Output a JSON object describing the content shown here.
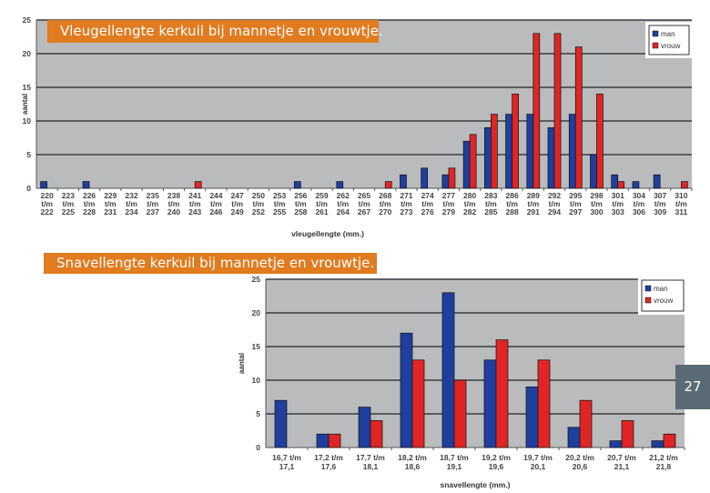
{
  "chart_data": [
    {
      "type": "bar",
      "title": "Vleugellengte kerkuil bij mannetje en vrouwtje.",
      "xlabel": "vleugellengte (mm.)",
      "ylabel": "aantal",
      "ylim": [
        0,
        25
      ],
      "yticks": [
        0,
        5,
        10,
        15,
        20,
        25
      ],
      "grid": true,
      "legend": "top-right",
      "categories": [
        [
          "220",
          "t/m",
          "222"
        ],
        [
          "223",
          "t/m",
          "225"
        ],
        [
          "226",
          "t/m",
          "228"
        ],
        [
          "229",
          "t/m",
          "231"
        ],
        [
          "232",
          "t/m",
          "234"
        ],
        [
          "235",
          "t/m",
          "237"
        ],
        [
          "238",
          "t/m",
          "240"
        ],
        [
          "241",
          "t/m",
          "243"
        ],
        [
          "244",
          "t/m",
          "246"
        ],
        [
          "247",
          "t/m",
          "249"
        ],
        [
          "250",
          "t/m",
          "252"
        ],
        [
          "253",
          "t/m",
          "255"
        ],
        [
          "256",
          "t/m",
          "258"
        ],
        [
          "259",
          "t/m",
          "261"
        ],
        [
          "262",
          "t/m",
          "264"
        ],
        [
          "265",
          "t/m",
          "267"
        ],
        [
          "268",
          "t/m",
          "270"
        ],
        [
          "271",
          "t/m",
          "273"
        ],
        [
          "274",
          "t/m",
          "276"
        ],
        [
          "277",
          "t/m",
          "279"
        ],
        [
          "280",
          "t/m",
          "282"
        ],
        [
          "283",
          "t/m",
          "285"
        ],
        [
          "286",
          "t/m",
          "288"
        ],
        [
          "289",
          "t/m",
          "291"
        ],
        [
          "292",
          "t/m",
          "294"
        ],
        [
          "295",
          "t/m",
          "297"
        ],
        [
          "298",
          "t/m",
          "300"
        ],
        [
          "301",
          "t/m",
          "303"
        ],
        [
          "304",
          "t/m",
          "306"
        ],
        [
          "307",
          "t/m",
          "309"
        ],
        [
          "310",
          "t/m",
          "311"
        ]
      ],
      "series": [
        {
          "name": "man",
          "color": "#1f3f9e",
          "values": [
            1,
            0,
            1,
            0,
            0,
            0,
            0,
            0,
            0,
            0,
            0,
            0,
            1,
            0,
            1,
            0,
            0,
            2,
            3,
            2,
            7,
            9,
            11,
            11,
            9,
            11,
            5,
            2,
            1,
            2,
            0
          ]
        },
        {
          "name": "vrouw",
          "color": "#e02525",
          "values": [
            0,
            0,
            0,
            0,
            0,
            0,
            0,
            1,
            0,
            0,
            0,
            0,
            0,
            0,
            0,
            0,
            1,
            0,
            0,
            3,
            8,
            11,
            14,
            23,
            23,
            21,
            14,
            1,
            0,
            0,
            1
          ]
        }
      ]
    },
    {
      "type": "bar",
      "title": "Snavellengte kerkuil bij mannetje en vrouwtje.",
      "xlabel": "snavellengte (mm.)",
      "ylabel": "aantal",
      "ylim": [
        0,
        25
      ],
      "yticks": [
        0,
        5,
        10,
        15,
        20,
        25
      ],
      "grid": true,
      "legend": "top-right",
      "categories": [
        [
          "16,7 t/m",
          "17,1"
        ],
        [
          "17,2 t/m",
          "17,6"
        ],
        [
          "17,7 t/m",
          "18,1"
        ],
        [
          "18,2 t/m",
          "18,6"
        ],
        [
          "18,7 t/m",
          "19,1"
        ],
        [
          "19,2 t/m",
          "19,6"
        ],
        [
          "19,7 t/m",
          "20,1"
        ],
        [
          "20,2 t/m",
          "20,6"
        ],
        [
          "20,7 t/m",
          "21,1"
        ],
        [
          "21,2 t/m",
          "21,8"
        ]
      ],
      "series": [
        {
          "name": "man",
          "color": "#1f3f9e",
          "values": [
            7,
            2,
            6,
            17,
            23,
            13,
            9,
            3,
            1,
            1
          ]
        },
        {
          "name": "vrouw",
          "color": "#e02525",
          "values": [
            0,
            2,
            4,
            13,
            10,
            16,
            13,
            7,
            4,
            2
          ]
        }
      ]
    }
  ],
  "page_number": "27"
}
